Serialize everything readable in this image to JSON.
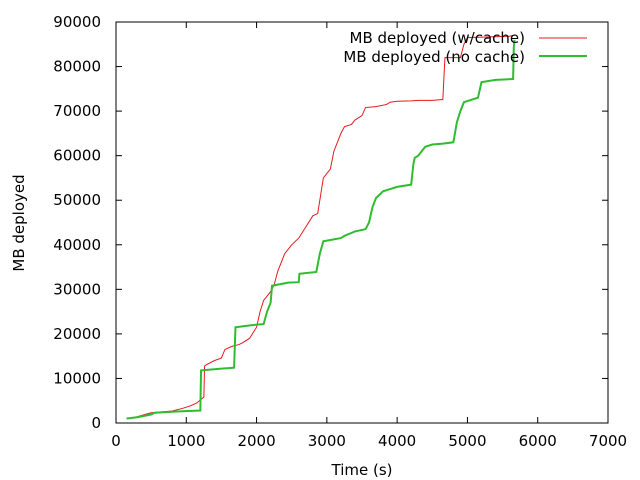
{
  "chart_data": {
    "type": "line",
    "title": "",
    "xlabel": "Time (s)",
    "ylabel": "MB deployed",
    "xlim": [
      0,
      7000
    ],
    "ylim": [
      0,
      90000
    ],
    "xticks": [
      0,
      1000,
      2000,
      3000,
      4000,
      5000,
      6000,
      7000
    ],
    "yticks": [
      0,
      10000,
      20000,
      30000,
      40000,
      50000,
      60000,
      70000,
      80000,
      90000
    ],
    "xtick_labels": [
      "0",
      "1000",
      "2000",
      "3000",
      "4000",
      "5000",
      "6000",
      "7000"
    ],
    "ytick_labels": [
      "0",
      "10000",
      "20000",
      "30000",
      "40000",
      "50000",
      "60000",
      "70000",
      "80000",
      "90000"
    ],
    "grid": false,
    "legend_position": "top-right",
    "series": [
      {
        "name": "MB deployed (w/cache)",
        "color": "#e41a1c",
        "style": "thin",
        "points": [
          [
            150,
            1000
          ],
          [
            300,
            1400
          ],
          [
            500,
            2300
          ],
          [
            800,
            2700
          ],
          [
            950,
            3300
          ],
          [
            1050,
            3800
          ],
          [
            1150,
            4500
          ],
          [
            1200,
            5200
          ],
          [
            1250,
            5800
          ],
          [
            1260,
            12800
          ],
          [
            1300,
            13200
          ],
          [
            1400,
            14000
          ],
          [
            1500,
            14600
          ],
          [
            1550,
            16500
          ],
          [
            1650,
            17200
          ],
          [
            1750,
            17600
          ],
          [
            1800,
            18000
          ],
          [
            1900,
            19000
          ],
          [
            2000,
            21500
          ],
          [
            2050,
            25000
          ],
          [
            2100,
            27500
          ],
          [
            2200,
            29500
          ],
          [
            2250,
            31000
          ],
          [
            2300,
            34000
          ],
          [
            2400,
            38000
          ],
          [
            2500,
            40000
          ],
          [
            2600,
            41500
          ],
          [
            2700,
            44000
          ],
          [
            2800,
            46500
          ],
          [
            2870,
            47000
          ],
          [
            2900,
            50000
          ],
          [
            2950,
            55000
          ],
          [
            3050,
            57000
          ],
          [
            3100,
            61000
          ],
          [
            3200,
            65000
          ],
          [
            3250,
            66500
          ],
          [
            3350,
            67000
          ],
          [
            3400,
            68000
          ],
          [
            3500,
            69000
          ],
          [
            3550,
            70800
          ],
          [
            3700,
            71000
          ],
          [
            3850,
            71500
          ],
          [
            3900,
            72000
          ],
          [
            4000,
            72200
          ],
          [
            4200,
            72300
          ],
          [
            4300,
            72400
          ],
          [
            4500,
            72400
          ],
          [
            4650,
            72600
          ],
          [
            4680,
            82000
          ],
          [
            4900,
            82000
          ],
          [
            4950,
            85000
          ],
          [
            5000,
            86500
          ],
          [
            5600,
            86800
          ],
          [
            5650,
            87000
          ]
        ]
      },
      {
        "name": "MB deployed (no cache)",
        "color": "#2ebd2e",
        "style": "thick",
        "points": [
          [
            150,
            1000
          ],
          [
            300,
            1300
          ],
          [
            500,
            1900
          ],
          [
            550,
            2300
          ],
          [
            900,
            2600
          ],
          [
            1200,
            2800
          ],
          [
            1210,
            11800
          ],
          [
            1500,
            12200
          ],
          [
            1680,
            12400
          ],
          [
            1700,
            21500
          ],
          [
            1950,
            22000
          ],
          [
            2100,
            22200
          ],
          [
            2150,
            25000
          ],
          [
            2200,
            27000
          ],
          [
            2220,
            30800
          ],
          [
            2450,
            31500
          ],
          [
            2600,
            31600
          ],
          [
            2610,
            33500
          ],
          [
            2850,
            33900
          ],
          [
            2900,
            38000
          ],
          [
            2950,
            40800
          ],
          [
            3200,
            41500
          ],
          [
            3250,
            42000
          ],
          [
            3400,
            43000
          ],
          [
            3550,
            43500
          ],
          [
            3600,
            45000
          ],
          [
            3650,
            48500
          ],
          [
            3700,
            50500
          ],
          [
            3800,
            52000
          ],
          [
            3900,
            52500
          ],
          [
            4000,
            53000
          ],
          [
            4200,
            53500
          ],
          [
            4230,
            58000
          ],
          [
            4250,
            59500
          ],
          [
            4300,
            60000
          ],
          [
            4400,
            62000
          ],
          [
            4500,
            62500
          ],
          [
            4650,
            62700
          ],
          [
            4800,
            63000
          ],
          [
            4850,
            67500
          ],
          [
            4900,
            70000
          ],
          [
            4950,
            72000
          ],
          [
            5050,
            72500
          ],
          [
            5150,
            73000
          ],
          [
            5200,
            76500
          ],
          [
            5400,
            77000
          ],
          [
            5650,
            77200
          ],
          [
            5660,
            84500
          ],
          [
            5670,
            86000
          ]
        ]
      }
    ]
  }
}
